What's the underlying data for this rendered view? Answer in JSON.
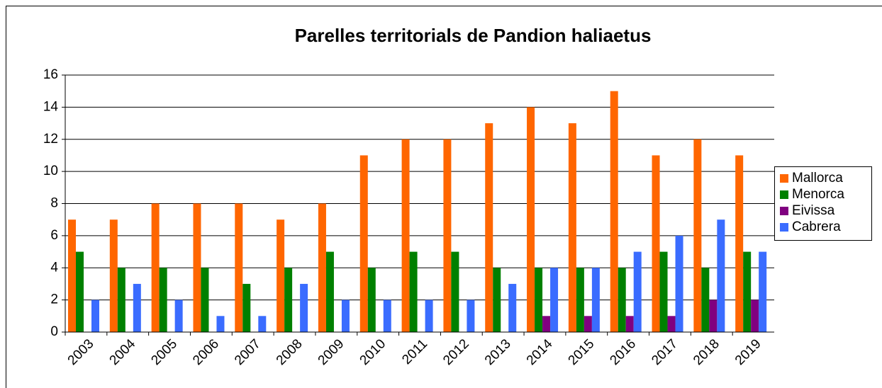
{
  "chart_data": {
    "type": "bar",
    "title": "Parelles territorials de Pandion haliaetus",
    "categories": [
      "2003",
      "2004",
      "2005",
      "2006",
      "2007",
      "2008",
      "2009",
      "2010",
      "2011",
      "2012",
      "2013",
      "2014",
      "2015",
      "2016",
      "2017",
      "2018",
      "2019"
    ],
    "series": [
      {
        "name": "Mallorca",
        "color": "#ff6600",
        "values": [
          7,
          7,
          8,
          8,
          8,
          7,
          8,
          11,
          12,
          12,
          13,
          14,
          13,
          15,
          11,
          12,
          11
        ]
      },
      {
        "name": "Menorca",
        "color": "#008000",
        "values": [
          5,
          4,
          4,
          4,
          3,
          4,
          5,
          4,
          5,
          5,
          4,
          4,
          4,
          4,
          5,
          4,
          5
        ]
      },
      {
        "name": "Eivissa",
        "color": "#800080",
        "values": [
          0,
          0,
          0,
          0,
          0,
          0,
          0,
          0,
          0,
          0,
          0,
          1,
          1,
          1,
          1,
          2,
          2
        ]
      },
      {
        "name": "Cabrera",
        "color": "#3a6cff",
        "values": [
          2,
          3,
          2,
          1,
          1,
          3,
          2,
          2,
          2,
          2,
          3,
          4,
          4,
          5,
          6,
          7,
          5
        ]
      }
    ],
    "ylim": [
      0,
      16
    ],
    "yticks": [
      0,
      2,
      4,
      6,
      8,
      10,
      12,
      14,
      16
    ],
    "grid": true,
    "legend": "right"
  }
}
